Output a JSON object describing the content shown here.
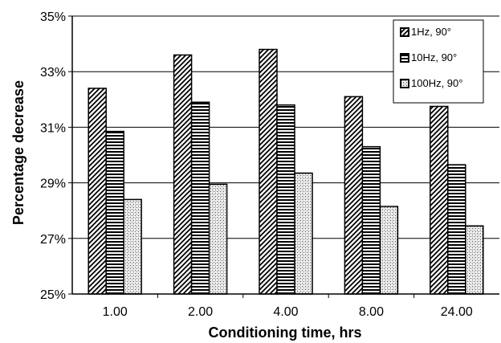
{
  "chart_data": {
    "type": "bar",
    "title": "",
    "xlabel": "Conditioning time, hrs",
    "ylabel": "Percentage decrease",
    "categories": [
      "1.00",
      "2.00",
      "4.00",
      "8.00",
      "24.00"
    ],
    "ylim": [
      25,
      35
    ],
    "yticks": [
      "25%",
      "27%",
      "29%",
      "31%",
      "33%",
      "35%"
    ],
    "ytick_values": [
      25,
      27,
      29,
      31,
      33,
      35
    ],
    "grid": true,
    "legend_position": "top-right",
    "series": [
      {
        "name": "1Hz, 90°",
        "pattern": "diagonal-hatch",
        "values": [
          32.4,
          33.6,
          33.8,
          32.1,
          31.75
        ]
      },
      {
        "name": "10Hz, 90°",
        "pattern": "horizontal-stripes",
        "values": [
          30.85,
          31.9,
          31.8,
          30.3,
          29.65
        ]
      },
      {
        "name": "100Hz, 90°",
        "pattern": "crosshatch-dots",
        "values": [
          28.4,
          28.95,
          29.35,
          28.15,
          27.45
        ]
      }
    ]
  }
}
